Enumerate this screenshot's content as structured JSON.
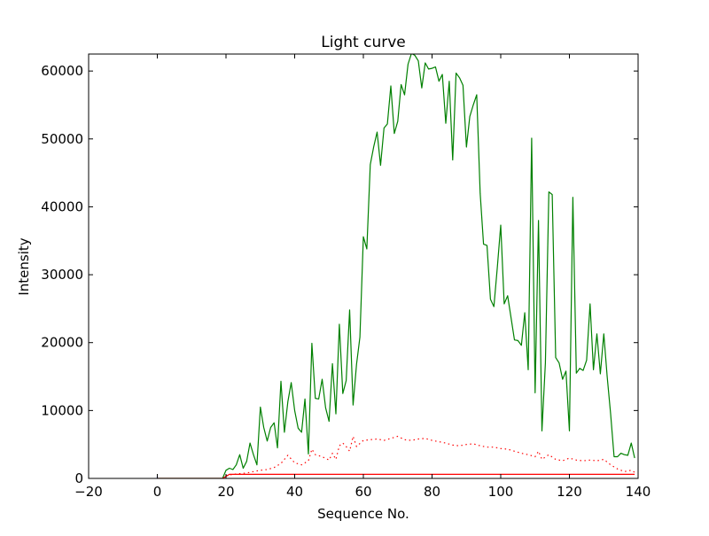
{
  "chart_data": {
    "type": "line",
    "title": "Light curve",
    "xlabel": "Sequence No.",
    "ylabel": "Intensity",
    "xlim": [
      -20,
      140
    ],
    "ylim": [
      0,
      62500
    ],
    "xticks": [
      -20,
      0,
      20,
      40,
      60,
      80,
      100,
      120,
      140
    ],
    "yticks": [
      0,
      10000,
      20000,
      30000,
      40000,
      50000,
      60000
    ],
    "grid": false,
    "series": [
      {
        "color": "#008000",
        "style": "solid",
        "x": [
          0,
          1,
          2,
          3,
          4,
          5,
          6,
          7,
          8,
          9,
          10,
          11,
          12,
          13,
          14,
          15,
          16,
          17,
          18,
          19,
          20,
          21,
          22,
          23,
          24,
          25,
          26,
          27,
          28,
          29,
          30,
          31,
          32,
          33,
          34,
          35,
          36,
          37,
          38,
          39,
          40,
          41,
          42,
          43,
          44,
          45,
          46,
          47,
          48,
          49,
          50,
          51,
          52,
          53,
          54,
          55,
          56,
          57,
          58,
          59,
          60,
          61,
          62,
          63,
          64,
          65,
          66,
          67,
          68,
          69,
          70,
          71,
          72,
          73,
          74,
          75,
          76,
          77,
          78,
          79,
          80,
          81,
          82,
          83,
          84,
          85,
          86,
          87,
          88,
          89,
          90,
          91,
          92,
          93,
          94,
          95,
          96,
          97,
          98,
          99,
          100,
          101,
          102,
          103,
          104,
          105,
          106,
          107,
          108,
          109,
          110,
          111,
          112,
          113,
          114,
          115,
          116,
          117,
          118,
          119,
          120,
          121,
          122,
          123,
          124,
          125,
          126,
          127,
          128,
          129,
          130,
          131,
          132,
          133,
          134,
          135,
          136,
          137,
          138,
          139
        ],
        "y": [
          0,
          0,
          0,
          0,
          0,
          0,
          0,
          0,
          0,
          0,
          0,
          0,
          0,
          0,
          0,
          0,
          0,
          0,
          0,
          0,
          1200,
          1500,
          1300,
          2000,
          3500,
          1500,
          2500,
          5200,
          3500,
          2000,
          10500,
          7500,
          5500,
          7500,
          8200,
          4500,
          14300,
          6800,
          11300,
          14100,
          10000,
          7400,
          6800,
          11700,
          3600,
          19900,
          11800,
          11700,
          14600,
          10400,
          8400,
          16900,
          9500,
          22700,
          12500,
          14400,
          24800,
          10800,
          16800,
          20800,
          35600,
          33800,
          46200,
          48800,
          51000,
          46100,
          51600,
          52200,
          57800,
          50800,
          52600,
          58000,
          56500,
          61000,
          62600,
          62300,
          61500,
          57500,
          61200,
          60300,
          60400,
          60600,
          58500,
          59500,
          52300,
          58500,
          46900,
          59700,
          59000,
          57900,
          48800,
          53300,
          55000,
          56500,
          42000,
          34500,
          34300,
          26400,
          25300,
          31000,
          37300,
          25700,
          26900,
          23700,
          20400,
          20300,
          19600,
          24400,
          16000,
          50100,
          12600,
          38000,
          7000,
          17000,
          42200,
          41800,
          17800,
          17000,
          14600,
          15800,
          7000,
          41400,
          15500,
          16200,
          15900,
          17400,
          25700,
          16000,
          21300,
          15400,
          21300,
          15000,
          9500,
          3200,
          3200,
          3700,
          3500,
          3400,
          5200,
          3000
        ]
      },
      {
        "color": "#ff0000",
        "style": "dotted",
        "x": [
          20,
          22,
          24,
          26,
          28,
          30,
          32,
          34,
          36,
          38,
          40,
          42,
          44,
          45,
          46,
          48,
          50,
          51,
          52,
          53,
          54,
          55,
          56,
          57,
          58,
          60,
          62,
          64,
          66,
          68,
          70,
          72,
          74,
          76,
          78,
          80,
          82,
          84,
          86,
          88,
          90,
          92,
          94,
          96,
          98,
          100,
          102,
          104,
          106,
          108,
          110,
          111,
          112,
          114,
          116,
          118,
          120,
          122,
          124,
          126,
          128,
          130,
          132,
          134,
          136,
          138,
          139
        ],
        "y": [
          400,
          600,
          700,
          800,
          1000,
          1200,
          1300,
          1600,
          2200,
          3400,
          2300,
          2000,
          2600,
          4300,
          3500,
          3200,
          2700,
          3700,
          2800,
          4800,
          5200,
          4700,
          4000,
          6200,
          4700,
          5600,
          5700,
          5800,
          5600,
          5900,
          6200,
          5700,
          5600,
          5800,
          5900,
          5600,
          5400,
          5200,
          4900,
          4800,
          5000,
          5100,
          4800,
          4600,
          4600,
          4400,
          4300,
          4000,
          3700,
          3500,
          3200,
          4000,
          2800,
          3500,
          2800,
          2600,
          3000,
          2700,
          2600,
          2700,
          2600,
          2800,
          2000,
          1400,
          1000,
          1200,
          900
        ]
      },
      {
        "color": "#ff0000",
        "style": "solid",
        "x": [
          0,
          19,
          20,
          21,
          139
        ],
        "y": [
          0,
          0,
          300,
          600,
          600
        ]
      },
      {
        "color": "#0000ff",
        "style": "solid",
        "x": [
          0,
          0
        ],
        "y": [
          0,
          300
        ]
      }
    ]
  }
}
